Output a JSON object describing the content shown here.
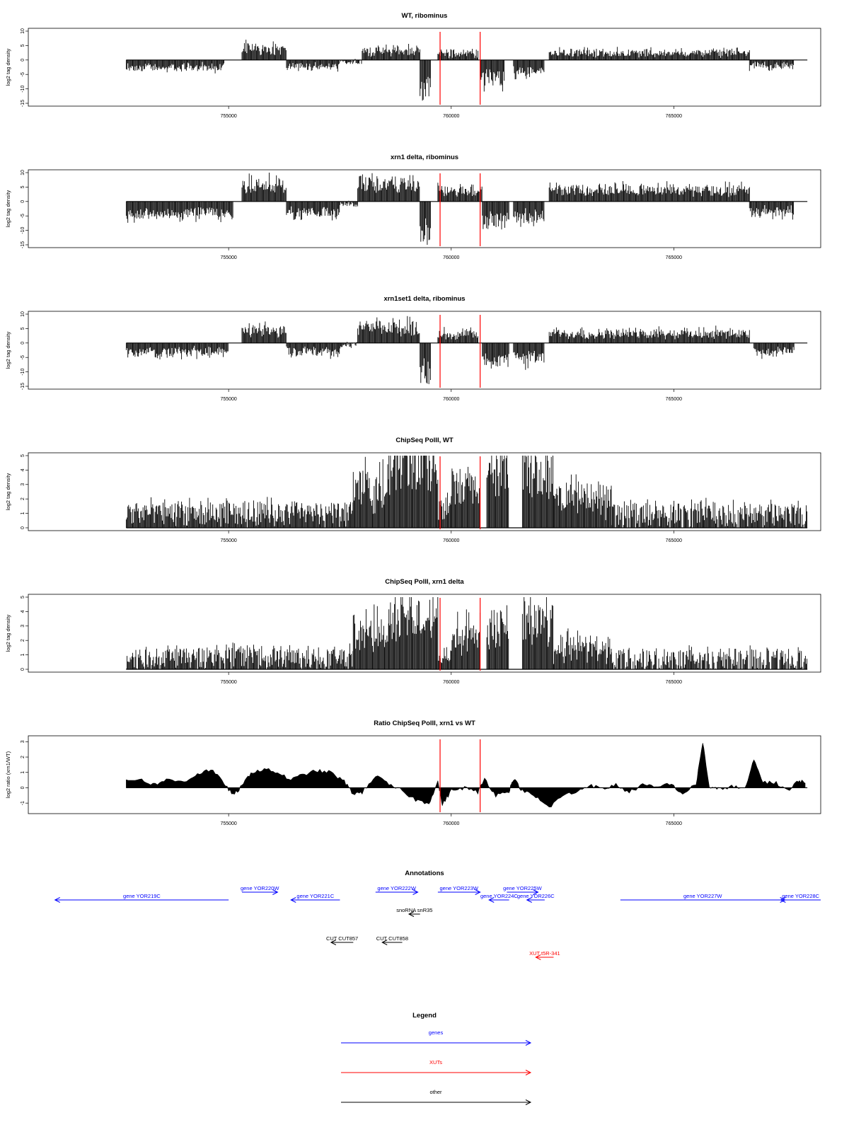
{
  "x_range": [
    750500,
    768300
  ],
  "x_ticks": [
    755000,
    760000,
    765000
  ],
  "x_tick_labels": [
    "755000",
    "760000",
    "765000"
  ],
  "markers": [
    759750,
    760650
  ],
  "colors": {
    "marker": "#ff0000",
    "genes": "#0000ff",
    "xuts": "#ff0000",
    "other": "#000000",
    "bars": "#000000"
  },
  "chart_data": [
    {
      "type": "bar",
      "title": "WT, ribominus",
      "ylabel": "log2 tag density",
      "ylim": [
        -15,
        10
      ],
      "yticks": [
        10,
        5,
        0,
        -5,
        -10,
        -15
      ],
      "ytick_labels": [
        "10",
        "5",
        "0",
        "-5",
        "-10",
        "-15"
      ],
      "segments": [
        {
          "x": [
            752700,
            754900
          ],
          "amp": -2.5,
          "noise": 0.8
        },
        {
          "x": [
            755300,
            756300
          ],
          "amp": 3.8,
          "noise": 0.8
        },
        {
          "x": [
            756300,
            757500
          ],
          "amp": -2.2,
          "noise": 0.8
        },
        {
          "x": [
            757500,
            758000
          ],
          "amp": -0.6,
          "noise": 1
        },
        {
          "x": [
            758000,
            759300
          ],
          "amp": 3.0,
          "noise": 0.8
        },
        {
          "x": [
            759300,
            759550
          ],
          "amp": -10,
          "noise": 0.3
        },
        {
          "x": [
            759700,
            760600
          ],
          "amp": 2.2,
          "noise": 0.8
        },
        {
          "x": [
            760650,
            761200
          ],
          "amp": -6,
          "noise": 0.5
        },
        {
          "x": [
            761400,
            762100
          ],
          "amp": -3.8,
          "noise": 0.6
        },
        {
          "x": [
            762200,
            766700
          ],
          "amp": 2.4,
          "noise": 0.7
        },
        {
          "x": [
            766700,
            767700
          ],
          "amp": -2.0,
          "noise": 0.7
        }
      ]
    },
    {
      "type": "bar",
      "title": "xrn1 delta, ribominus",
      "ylabel": "log2 tag density",
      "ylim": [
        -15,
        10
      ],
      "yticks": [
        10,
        5,
        0,
        -5,
        -10,
        -15
      ],
      "ytick_labels": [
        "10",
        "5",
        "0",
        "-5",
        "-10",
        "-15"
      ],
      "segments": [
        {
          "x": [
            752700,
            755100
          ],
          "amp": -4.0,
          "noise": 0.7
        },
        {
          "x": [
            755300,
            756300
          ],
          "amp": 5.5,
          "noise": 0.6
        },
        {
          "x": [
            756300,
            757500
          ],
          "amp": -3.5,
          "noise": 0.7
        },
        {
          "x": [
            757500,
            757900
          ],
          "amp": -0.8,
          "noise": 1
        },
        {
          "x": [
            757900,
            759300
          ],
          "amp": 6.0,
          "noise": 0.6
        },
        {
          "x": [
            759300,
            759550
          ],
          "amp": -10,
          "noise": 0.3
        },
        {
          "x": [
            759700,
            760700
          ],
          "amp": 3.5,
          "noise": 0.7
        },
        {
          "x": [
            760700,
            761300
          ],
          "amp": -7,
          "noise": 0.5
        },
        {
          "x": [
            761400,
            762100
          ],
          "amp": -5.0,
          "noise": 0.6
        },
        {
          "x": [
            762200,
            766700
          ],
          "amp": 3.8,
          "noise": 0.6
        },
        {
          "x": [
            766700,
            767700
          ],
          "amp": -3.5,
          "noise": 0.7
        }
      ]
    },
    {
      "type": "bar",
      "title": "xrn1set1 delta, ribominus",
      "ylabel": "log2 tag density",
      "ylim": [
        -15,
        10
      ],
      "yticks": [
        10,
        5,
        0,
        -5,
        -10,
        -15
      ],
      "ytick_labels": [
        "10",
        "5",
        "0",
        "-5",
        "-10",
        "-15"
      ],
      "segments": [
        {
          "x": [
            752700,
            755000
          ],
          "amp": -3.0,
          "noise": 0.8
        },
        {
          "x": [
            755300,
            756300
          ],
          "amp": 4.0,
          "noise": 0.7
        },
        {
          "x": [
            756300,
            757500
          ],
          "amp": -3.0,
          "noise": 0.8
        },
        {
          "x": [
            757500,
            757900
          ],
          "amp": -0.8,
          "noise": 1
        },
        {
          "x": [
            757900,
            759300
          ],
          "amp": 5.0,
          "noise": 0.6
        },
        {
          "x": [
            759300,
            759550
          ],
          "amp": -10,
          "noise": 0.3
        },
        {
          "x": [
            759700,
            760600
          ],
          "amp": 3.0,
          "noise": 0.7
        },
        {
          "x": [
            760700,
            761300
          ],
          "amp": -6,
          "noise": 0.5
        },
        {
          "x": [
            761400,
            762100
          ],
          "amp": -5.0,
          "noise": 0.6
        },
        {
          "x": [
            762200,
            766700
          ],
          "amp": 3.2,
          "noise": 0.6
        },
        {
          "x": [
            766800,
            767700
          ],
          "amp": -3.0,
          "noise": 0.8
        }
      ]
    },
    {
      "type": "bar",
      "title": "ChipSeq PolII, WT",
      "ylabel": "log2 tag density",
      "ylim": [
        0,
        5
      ],
      "yticks": [
        5,
        4,
        3,
        2,
        1,
        0
      ],
      "ytick_labels": [
        "5",
        "4",
        "3",
        "2",
        "1",
        "0"
      ],
      "segments": [
        {
          "x": [
            752700,
            757800
          ],
          "amp": 1.0,
          "noise": 0.8
        },
        {
          "x": [
            757800,
            758600
          ],
          "amp": 2.6,
          "noise": 0.5
        },
        {
          "x": [
            758600,
            759700
          ],
          "amp": 4.3,
          "noise": 0.3
        },
        {
          "x": [
            759700,
            760000
          ],
          "amp": 1.3,
          "noise": 0.4
        },
        {
          "x": [
            760000,
            760650
          ],
          "amp": 2.8,
          "noise": 0.4
        },
        {
          "x": [
            760800,
            761300
          ],
          "amp": 3.6,
          "noise": 0.3
        },
        {
          "x": [
            761600,
            762300
          ],
          "amp": 3.8,
          "noise": 0.3
        },
        {
          "x": [
            762300,
            763600
          ],
          "amp": 2.0,
          "noise": 0.6
        },
        {
          "x": [
            763600,
            768000
          ],
          "amp": 0.9,
          "noise": 0.9
        }
      ]
    },
    {
      "type": "bar",
      "title": "ChipSeq PolII, xrn1 delta",
      "ylabel": "log2 tag density",
      "ylim": [
        0,
        5
      ],
      "yticks": [
        5,
        4,
        3,
        2,
        1,
        0
      ],
      "ytick_labels": [
        "5",
        "4",
        "3",
        "2",
        "1",
        "0"
      ],
      "segments": [
        {
          "x": [
            752700,
            757800
          ],
          "amp": 0.8,
          "noise": 0.8
        },
        {
          "x": [
            757800,
            758600
          ],
          "amp": 2.4,
          "noise": 0.5
        },
        {
          "x": [
            758600,
            759700
          ],
          "amp": 3.6,
          "noise": 0.3
        },
        {
          "x": [
            759700,
            760000
          ],
          "amp": 0.9,
          "noise": 0.4
        },
        {
          "x": [
            760000,
            760650
          ],
          "amp": 2.3,
          "noise": 0.4
        },
        {
          "x": [
            760800,
            761300
          ],
          "amp": 2.9,
          "noise": 0.3
        },
        {
          "x": [
            761600,
            762300
          ],
          "amp": 3.3,
          "noise": 0.3
        },
        {
          "x": [
            762300,
            763600
          ],
          "amp": 1.5,
          "noise": 0.6
        },
        {
          "x": [
            763600,
            768000
          ],
          "amp": 0.6,
          "noise": 0.9
        }
      ]
    },
    {
      "type": "area",
      "title": "Ratio ChipSeq PolII, xrn1 vs WT",
      "ylabel": "log2 ratio (xrn1/WT)",
      "ylim": [
        -1.5,
        3.2
      ],
      "yticks": [
        3,
        2,
        1,
        0,
        -1
      ],
      "ytick_labels": [
        "3",
        "2",
        "1",
        "0",
        "-1"
      ],
      "points": [
        [
          752700,
          0.4
        ],
        [
          753000,
          0.6
        ],
        [
          753300,
          0.2
        ],
        [
          753600,
          0.5
        ],
        [
          754000,
          0.4
        ],
        [
          754300,
          0.9
        ],
        [
          754600,
          1.2
        ],
        [
          754900,
          0.3
        ],
        [
          755100,
          -0.5
        ],
        [
          755300,
          0.1
        ],
        [
          755500,
          1.0
        ],
        [
          755800,
          1.2
        ],
        [
          756100,
          1.0
        ],
        [
          756400,
          0.5
        ],
        [
          756700,
          0.9
        ],
        [
          757000,
          1.1
        ],
        [
          757300,
          1.0
        ],
        [
          757600,
          0.4
        ],
        [
          757800,
          -0.4
        ],
        [
          758000,
          -0.3
        ],
        [
          758300,
          0.8
        ],
        [
          758600,
          0.2
        ],
        [
          758900,
          -0.2
        ],
        [
          759200,
          -0.8
        ],
        [
          759500,
          -1.0
        ],
        [
          759700,
          0.4
        ],
        [
          759800,
          -1.1
        ],
        [
          760000,
          -0.2
        ],
        [
          760300,
          0.0
        ],
        [
          760600,
          -0.3
        ],
        [
          760750,
          0.6
        ],
        [
          761000,
          -0.5
        ],
        [
          761300,
          -0.2
        ],
        [
          761400,
          0.6
        ],
        [
          761600,
          -0.2
        ],
        [
          761900,
          -0.6
        ],
        [
          762200,
          -1.3
        ],
        [
          762500,
          -0.5
        ],
        [
          762800,
          -0.3
        ],
        [
          763100,
          0.2
        ],
        [
          763400,
          -0.1
        ],
        [
          763700,
          0.2
        ],
        [
          764000,
          -0.3
        ],
        [
          764300,
          0.2
        ],
        [
          764600,
          0.0
        ],
        [
          764900,
          0.3
        ],
        [
          765200,
          -0.4
        ],
        [
          765500,
          0.2
        ],
        [
          765650,
          3.0
        ],
        [
          765800,
          0.0
        ],
        [
          766000,
          -0.1
        ],
        [
          766300,
          0.1
        ],
        [
          766600,
          -0.1
        ],
        [
          766800,
          1.8
        ],
        [
          767000,
          0.4
        ],
        [
          767300,
          0.3
        ],
        [
          767600,
          -0.2
        ],
        [
          767800,
          0.5
        ],
        [
          767950,
          0.3
        ]
      ]
    }
  ],
  "annotations": {
    "title": "Annotations",
    "features": [
      {
        "label": "gene YOR219C",
        "start": 755000,
        "end": 751100,
        "row": 1,
        "type": "gene"
      },
      {
        "label": "gene YOR220W",
        "start": 755300,
        "end": 756100,
        "row": 0,
        "type": "gene"
      },
      {
        "label": "gene YOR221C",
        "start": 757500,
        "end": 756400,
        "row": 1,
        "type": "gene"
      },
      {
        "label": "gene YOR222W",
        "start": 758300,
        "end": 759250,
        "row": 0,
        "type": "gene"
      },
      {
        "label": "gene YOR223W",
        "start": 759700,
        "end": 760650,
        "row": 0,
        "type": "gene"
      },
      {
        "label": "gene YOR225W",
        "start": 761250,
        "end": 761950,
        "row": 0,
        "type": "gene"
      },
      {
        "label": "gene YOR224C",
        "start": 761300,
        "end": 760850,
        "row": 1,
        "type": "gene"
      },
      {
        "label": "gene YOR226C",
        "start": 762100,
        "end": 761700,
        "row": 1,
        "type": "gene"
      },
      {
        "label": "gene YOR227W",
        "start": 763800,
        "end": 767500,
        "row": 1,
        "type": "gene"
      },
      {
        "label": "gene YOR228C",
        "start": 768300,
        "end": 767400,
        "row": 1,
        "type": "gene"
      },
      {
        "label": "snoRNA snR35",
        "start": 759300,
        "end": 759050,
        "row": 2,
        "type": "other"
      },
      {
        "label": "CUT CUT857",
        "start": 757800,
        "end": 757300,
        "row": 3,
        "type": "other"
      },
      {
        "label": "CUT CUT858",
        "start": 758900,
        "end": 758450,
        "row": 3,
        "type": "other"
      },
      {
        "label": "XUT t5R-341",
        "start": 762300,
        "end": 761900,
        "row": 4,
        "type": "xut"
      }
    ]
  },
  "legend": {
    "title": "Legend",
    "items": [
      {
        "label": "genes",
        "type": "gene"
      },
      {
        "label": "XUTs",
        "type": "xut"
      },
      {
        "label": "other",
        "type": "other"
      }
    ]
  }
}
